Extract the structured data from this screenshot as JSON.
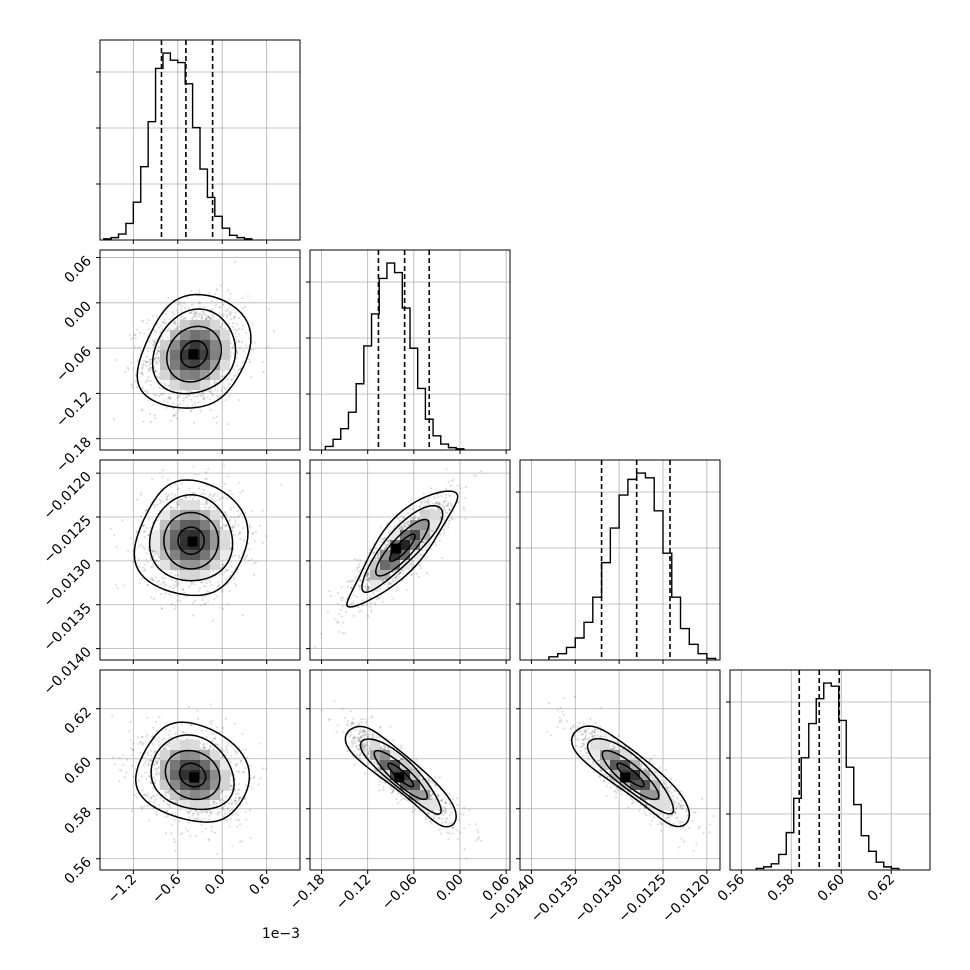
{
  "chart_data": {
    "type": "corner",
    "parameters": 4,
    "colors": {
      "ink": "#000000",
      "grid": "#b0b0b0",
      "scatter": "#000000"
    },
    "axes_ticks": [
      {
        "values": [
          -1.2,
          -0.6,
          0.0,
          0.6
        ],
        "labels": [
          "−1.2",
          "−0.6",
          "0.0",
          "0.6"
        ],
        "offset_text": "1e−3"
      },
      {
        "values": [
          -0.18,
          -0.12,
          -0.06,
          0.0,
          0.06
        ],
        "labels": [
          "−0.18",
          "−0.12",
          "−0.06",
          "0.00",
          "0.06"
        ]
      },
      {
        "values": [
          -0.014,
          -0.0135,
          -0.013,
          -0.0125,
          -0.012
        ],
        "labels": [
          "−0.0140",
          "−0.0135",
          "−0.0130",
          "−0.0125",
          "−0.0120"
        ]
      },
      {
        "values": [
          0.56,
          0.58,
          0.6,
          0.62
        ],
        "labels": [
          "0.56",
          "0.58",
          "0.60",
          "0.62"
        ]
      }
    ],
    "ranges": [
      [
        -1.65,
        1.05
      ],
      [
        -0.195,
        0.065
      ],
      [
        -0.01413,
        -0.01185
      ],
      [
        0.5555,
        0.6355
      ]
    ],
    "y_ranges": [
      [
        -1.65,
        1.05
      ],
      [
        -0.195,
        0.07
      ],
      [
        -0.01413,
        -0.01185
      ],
      [
        0.5555,
        0.6355
      ]
    ],
    "histograms": [
      {
        "bin_start": -1.6,
        "bin_width": 0.1,
        "counts": [
          1,
          2,
          5,
          14,
          32,
          62,
          100,
          145,
          158,
          152,
          150,
          132,
          95,
          60,
          36,
          20,
          10,
          4,
          2,
          1
        ],
        "quantiles": [
          -0.82,
          -0.49,
          -0.13
        ]
      },
      {
        "bin_start": -0.175,
        "bin_width": 0.01,
        "counts": [
          3,
          9,
          18,
          32,
          56,
          88,
          115,
          145,
          158,
          150,
          120,
          86,
          52,
          26,
          12,
          5,
          2,
          1
        ],
        "quantiles": [
          -0.106,
          -0.072,
          -0.04
        ]
      },
      {
        "bin_start": -0.0138,
        "bin_width": 0.0001,
        "counts": [
          2,
          4,
          8,
          14,
          24,
          40,
          62,
          84,
          105,
          115,
          119,
          116,
          95,
          68,
          40,
          20,
          10,
          4,
          1
        ],
        "quantiles": [
          -0.0132,
          -0.0128,
          -0.01242
        ]
      },
      {
        "bin_start": 0.566,
        "bin_width": 0.003,
        "counts": [
          1,
          2,
          4,
          10,
          24,
          46,
          72,
          94,
          110,
          120,
          118,
          96,
          66,
          42,
          22,
          12,
          5,
          2,
          1
        ],
        "quantiles": [
          0.5832,
          0.5912,
          0.5992
        ]
      }
    ],
    "pairs": [
      {
        "row": 1,
        "col": 0,
        "mean": [
          -0.38,
          -0.068
        ],
        "sd": [
          0.32,
          0.032
        ],
        "corr": 0.15,
        "peak": [
          -0.39,
          -0.068
        ]
      },
      {
        "row": 2,
        "col": 0,
        "mean": [
          -0.42,
          -0.01277
        ],
        "sd": [
          0.32,
          0.00028
        ],
        "corr": 0.0,
        "peak": [
          -0.4,
          -0.01278
        ]
      },
      {
        "row": 2,
        "col": 1,
        "mean": [
          -0.075,
          -0.01285
        ],
        "sd": [
          0.03,
          0.00028
        ],
        "corr": 0.85,
        "peak": [
          -0.083,
          -0.01286
        ]
      },
      {
        "row": 3,
        "col": 0,
        "mean": [
          -0.4,
          0.5935
        ],
        "sd": [
          0.32,
          0.0085
        ],
        "corr": -0.15,
        "peak": [
          -0.38,
          0.5925
        ]
      },
      {
        "row": 3,
        "col": 1,
        "mean": [
          -0.077,
          0.5935
        ],
        "sd": [
          0.03,
          0.0085
        ],
        "corr": -0.88,
        "peak": [
          -0.079,
          0.5925
        ]
      },
      {
        "row": 3,
        "col": 2,
        "mean": [
          -0.01287,
          0.5935
        ],
        "sd": [
          0.00028,
          0.0085
        ],
        "corr": -0.85,
        "peak": [
          -0.01293,
          0.5925
        ]
      }
    ],
    "grid": true
  }
}
